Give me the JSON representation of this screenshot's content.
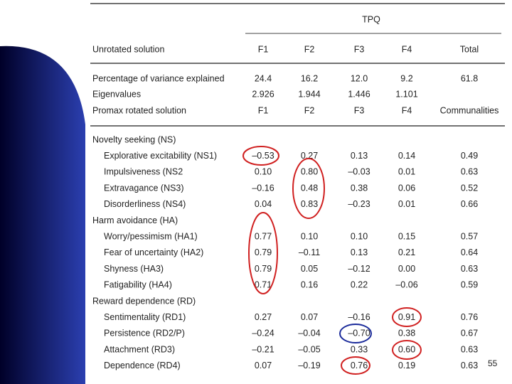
{
  "table": {
    "group_header": "TPQ",
    "header": [
      "Unrotated solution",
      "F1",
      "F2",
      "F3",
      "F4",
      "Total"
    ],
    "summary_rows": [
      [
        "Percentage of variance explained",
        "24.4",
        "16.2",
        "12.0",
        "9.2",
        "61.8"
      ],
      [
        "Eigenvalues",
        "2.926",
        "1.944",
        "1.446",
        "1.101"
      ],
      [
        "Promax rotated solution",
        "F1",
        "F2",
        "F3",
        "F4",
        "Communalities"
      ]
    ],
    "sections": [
      {
        "title": "Novelty seeking (NS)",
        "rows": [
          [
            "Explorative excitability (NS1)",
            "–0.53",
            "0.27",
            "0.13",
            "0.14",
            "0.49"
          ],
          [
            "Impulsiveness (NS2",
            "0.10",
            "0.80",
            "–0.03",
            "0.01",
            "0.63"
          ],
          [
            "Extravagance (NS3)",
            "–0.16",
            "0.48",
            "0.38",
            "0.06",
            "0.52"
          ],
          [
            "Disorderliness (NS4)",
            "0.04",
            "0.83",
            "–0.23",
            "0.01",
            "0.66"
          ]
        ]
      },
      {
        "title": "Harm avoidance (HA)",
        "rows": [
          [
            "Worry/pessimism (HA1)",
            "0.77",
            "0.10",
            "0.10",
            "0.15",
            "0.57"
          ],
          [
            "Fear of uncertainty (HA2)",
            "0.79",
            "–0.11",
            "0.13",
            "0.21",
            "0.64"
          ],
          [
            "Shyness (HA3)",
            "0.79",
            "0.05",
            "–0.12",
            "0.00",
            "0.63"
          ],
          [
            "Fatigability (HA4)",
            "0.71",
            "0.16",
            "0.22",
            "–0.06",
            "0.59"
          ]
        ]
      },
      {
        "title": "Reward dependence (RD)",
        "rows": [
          [
            "Sentimentality (RD1)",
            "0.27",
            "0.07",
            "–0.16",
            "0.91",
            "0.76"
          ],
          [
            "Persistence (RD2/P)",
            "–0.24",
            "–0.04",
            "–0.70",
            "0.38",
            "0.67"
          ],
          [
            "Attachment (RD3)",
            "–0.21",
            "–0.05",
            "0.33",
            "0.60",
            "0.63"
          ],
          [
            "Dependence (RD4)",
            "0.07",
            "–0.19",
            "0.76",
            "0.19",
            "0.63"
          ]
        ]
      }
    ]
  },
  "page_number": "55"
}
